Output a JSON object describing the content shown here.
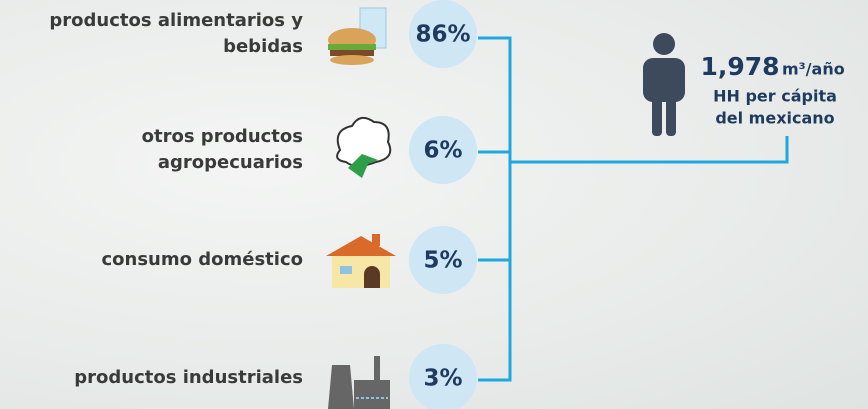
{
  "items": [
    {
      "label": [
        "productos alimentarios y",
        "bebidas"
      ],
      "percent": "86%"
    },
    {
      "label": [
        "otros productos",
        "agropecuarios"
      ],
      "percent": "6%"
    },
    {
      "label": [
        "consumo doméstico"
      ],
      "percent": "5%"
    },
    {
      "label": [
        "productos industriales"
      ],
      "percent": "3%"
    }
  ],
  "total": {
    "value": "1,978",
    "unit": "m³/año",
    "lines": [
      "HH per cápita",
      "del mexicano"
    ]
  }
}
